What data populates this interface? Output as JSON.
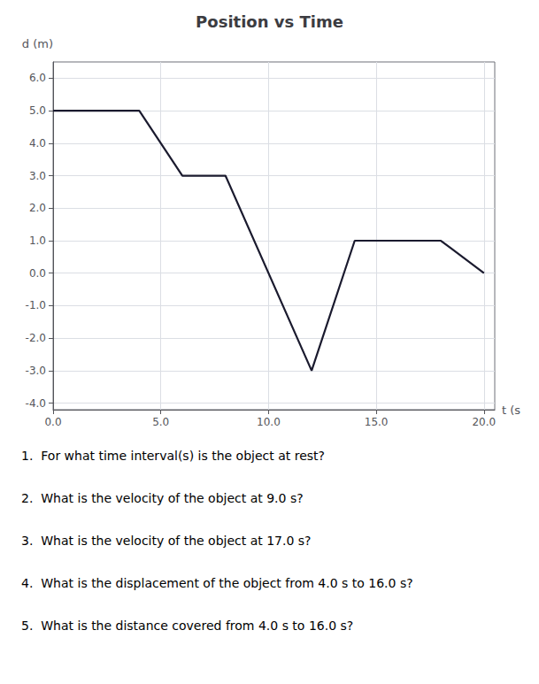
{
  "chart_data": {
    "type": "line",
    "title": "Position vs Time",
    "xlabel": "t (s",
    "ylabel": "d (m)",
    "x": [
      0.0,
      4.0,
      6.0,
      8.0,
      12.0,
      12.0,
      14.0,
      18.0,
      20.0
    ],
    "values": [
      5.0,
      5.0,
      3.0,
      3.0,
      -3.0,
      -3.0,
      1.0,
      1.0,
      0.0
    ],
    "color": "#1a1a2e",
    "xlim": [
      0.0,
      20.5
    ],
    "ylim": [
      -4.2,
      6.5
    ],
    "xticks": [
      {
        "value": 0.0,
        "label": "0.0"
      },
      {
        "value": 5.0,
        "label": "5.0"
      },
      {
        "value": 10.0,
        "label": "10.0"
      },
      {
        "value": 15.0,
        "label": "15.0"
      },
      {
        "value": 20.0,
        "label": "20.0"
      }
    ],
    "yticks": [
      {
        "value": -4.0,
        "label": "-4.0"
      },
      {
        "value": -3.0,
        "label": "-3.0"
      },
      {
        "value": -2.0,
        "label": "-2.0"
      },
      {
        "value": -1.0,
        "label": "-1.0"
      },
      {
        "value": 0.0,
        "label": "0.0"
      },
      {
        "value": 1.0,
        "label": "1.0"
      },
      {
        "value": 2.0,
        "label": "2.0"
      },
      {
        "value": 3.0,
        "label": "3.0"
      },
      {
        "value": 4.0,
        "label": "4.0"
      },
      {
        "value": 5.0,
        "label": "5.0"
      },
      {
        "value": 6.0,
        "label": "6.0"
      }
    ],
    "grid": true,
    "annotations": [
      "1.  For what time interval(s) is the object at rest? ",
      "2.  What is the velocity of the object at 9.0 s? ",
      "3.  What is the velocity of the object at 17.0 s? ",
      "4.  What is the displacement of the object from 4.0 s to 16.0 s? ",
      "5.  What is the distance covered from 4.0 s to 16.0 s?"
    ]
  }
}
